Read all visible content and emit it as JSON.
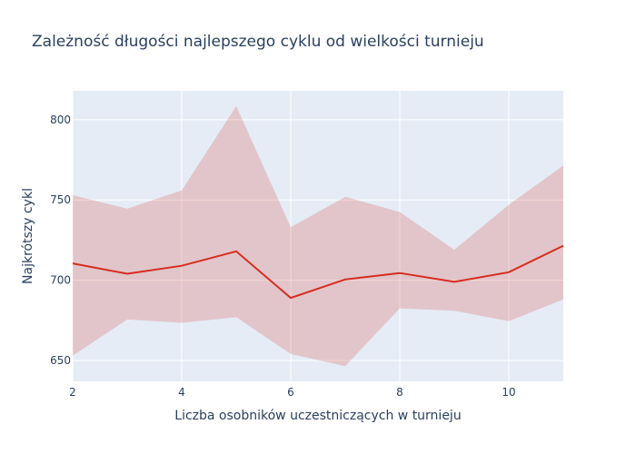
{
  "chart_data": {
    "type": "line",
    "title": "Zależność długości najlepszego cyklu od wielkości turnieju",
    "xlabel": "Liczba osobników uczestniczących w turnieju",
    "ylabel": "Najkrótszy cykl",
    "x": [
      2,
      3,
      4,
      5,
      6,
      7,
      8,
      9,
      10,
      11
    ],
    "xlim": [
      2,
      11
    ],
    "ylim": [
      637,
      818
    ],
    "x_ticks": [
      2,
      4,
      6,
      8,
      10
    ],
    "y_ticks": [
      650,
      700,
      750,
      800
    ],
    "grid": true,
    "series": [
      {
        "type": "line",
        "values": [
          710.5,
          704,
          709,
          718,
          689,
          700.5,
          704.5,
          699,
          705,
          721.5
        ],
        "color": "#d62c1f"
      },
      {
        "type": "band",
        "upper": [
          753,
          744.5,
          756,
          808.5,
          733,
          752,
          742.5,
          719,
          747,
          771.5
        ],
        "lower": [
          653,
          675.5,
          673.5,
          677,
          654,
          646.5,
          682.5,
          681,
          674.5,
          688
        ],
        "color": "#d62c1f",
        "opacity": 0.2
      }
    ]
  },
  "colors": {
    "plot_bg": "#e5ecf6",
    "grid": "#ffffff",
    "text": "#2a3f5f",
    "line": "#d62c1f",
    "band": "rgba(214,44,31,0.2)"
  }
}
